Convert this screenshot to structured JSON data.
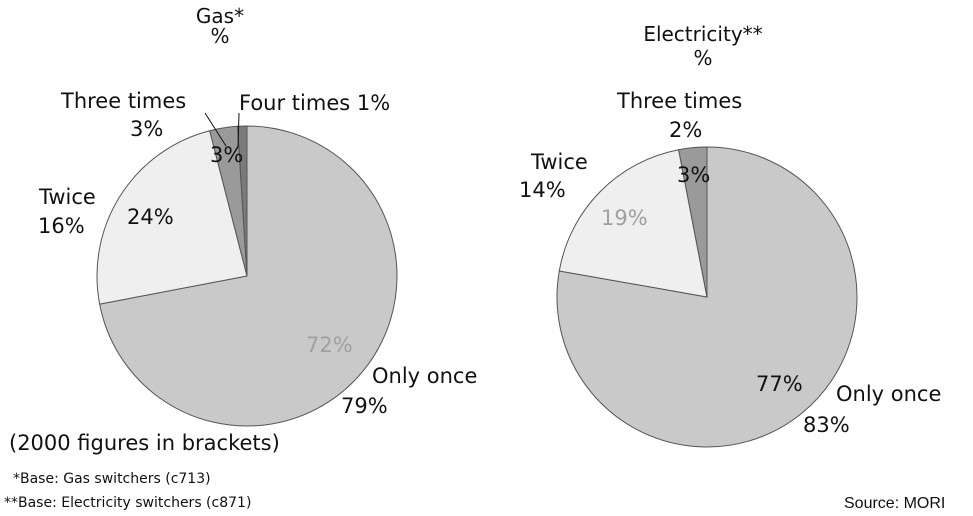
{
  "chart_data": [
    {
      "type": "pie",
      "title": "Gas*",
      "unit": "%",
      "labels": [
        "Only once",
        "Twice",
        "Three times",
        "Four times"
      ],
      "values": [
        72,
        24,
        3,
        1
      ],
      "value_labels": [
        "72%",
        "24%",
        "3%",
        ""
      ],
      "previous": [
        "79%",
        "16%",
        "3%",
        ""
      ],
      "callouts": [
        "Only once",
        "Twice",
        "Three times",
        "Four times 1%"
      ],
      "colors": [
        "#c9c9c9",
        "#efefef",
        "#9a9a9a",
        "#7a7a7a"
      ],
      "value_label_colors": [
        "#a0a0a0",
        "#111111",
        "#111111",
        "#111111"
      ]
    },
    {
      "type": "pie",
      "title": "Electricity**",
      "unit": "%",
      "labels": [
        "Only once",
        "Twice",
        "Three times"
      ],
      "values": [
        77,
        19,
        3
      ],
      "value_labels": [
        "77%",
        "19%",
        "3%"
      ],
      "previous": [
        "83%",
        "14%",
        "2%"
      ],
      "callouts": [
        "Only once",
        "Twice",
        "Three times"
      ],
      "colors": [
        "#c9c9c9",
        "#efefef",
        "#9a9a9a"
      ],
      "value_label_colors": [
        "#111111",
        "#a0a0a0",
        "#111111"
      ]
    }
  ],
  "notes": {
    "brackets": "(2000 figures in brackets)",
    "base_gas": "*Base: Gas switchers (c713)",
    "base_electricity": "**Base: Electricity switchers (c871)",
    "source": "Source: MORI"
  }
}
